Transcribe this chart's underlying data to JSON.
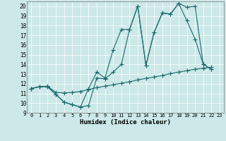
{
  "xlabel": "Humidex (Indice chaleur)",
  "bg_color": "#cce8e8",
  "line_color": "#1a6b6b",
  "xlim": [
    -0.5,
    23.5
  ],
  "ylim": [
    9,
    20.5
  ],
  "xticks": [
    0,
    1,
    2,
    3,
    4,
    5,
    6,
    7,
    8,
    9,
    10,
    11,
    12,
    13,
    14,
    15,
    16,
    17,
    18,
    19,
    20,
    21,
    22,
    23
  ],
  "yticks": [
    9,
    10,
    11,
    12,
    13,
    14,
    15,
    16,
    17,
    18,
    19,
    20
  ],
  "line1_x": [
    0,
    1,
    2,
    3,
    4,
    5,
    6,
    7,
    8,
    9,
    10,
    11,
    12,
    13,
    14,
    15,
    16,
    17,
    18,
    19,
    20,
    21,
    22
  ],
  "line1_y": [
    11.5,
    11.7,
    11.7,
    10.9,
    10.1,
    9.85,
    9.6,
    9.75,
    12.6,
    12.5,
    13.2,
    14.0,
    17.6,
    20.0,
    13.9,
    17.3,
    19.3,
    19.2,
    20.3,
    18.5,
    16.6,
    14.0,
    13.5
  ],
  "line2_x": [
    0,
    1,
    2,
    3,
    4,
    5,
    6,
    7,
    8,
    9,
    10,
    11,
    12,
    13,
    14,
    15,
    16,
    17,
    18,
    19,
    20,
    21,
    22
  ],
  "line2_y": [
    11.5,
    11.7,
    11.7,
    10.9,
    10.1,
    9.85,
    9.6,
    11.5,
    13.2,
    12.6,
    15.5,
    17.6,
    17.6,
    20.0,
    13.9,
    17.3,
    19.3,
    19.2,
    20.3,
    19.9,
    20.0,
    14.0,
    13.5
  ],
  "line3_x": [
    0,
    1,
    2,
    3,
    4,
    5,
    6,
    7,
    8,
    9,
    10,
    11,
    12,
    13,
    14,
    15,
    16,
    17,
    18,
    19,
    20,
    21,
    22
  ],
  "line3_y": [
    11.5,
    11.7,
    11.75,
    11.1,
    11.05,
    11.1,
    11.2,
    11.4,
    11.6,
    11.75,
    11.9,
    12.05,
    12.2,
    12.4,
    12.55,
    12.7,
    12.85,
    13.05,
    13.2,
    13.35,
    13.5,
    13.6,
    13.7
  ]
}
